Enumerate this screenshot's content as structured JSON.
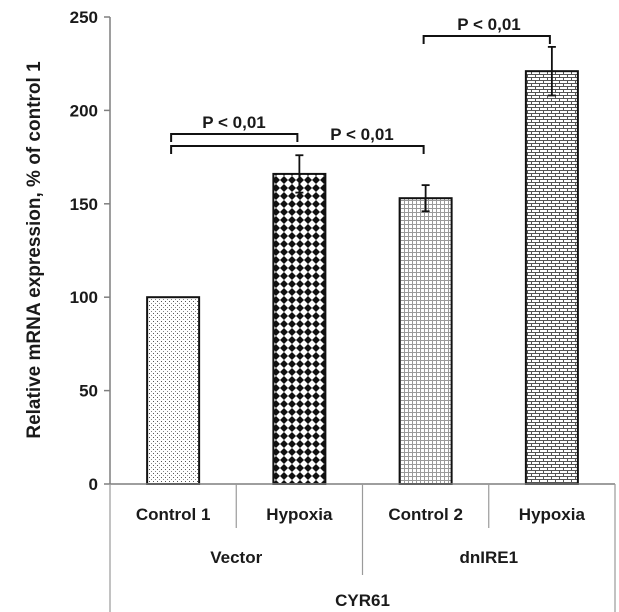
{
  "chart_data": {
    "type": "bar",
    "ylabel": "Relative mRNA expression, % of control 1",
    "ylim": [
      0,
      250
    ],
    "yticks": [
      0,
      50,
      100,
      150,
      200,
      250
    ],
    "grid": false,
    "categories": [
      "Control 1",
      "Hypoxia",
      "Control 2",
      "Hypoxia"
    ],
    "groups": [
      "Vector",
      "dnIRE1"
    ],
    "gene": "CYR61",
    "values": [
      100,
      166,
      153,
      221
    ],
    "errors": [
      0,
      10,
      7,
      13
    ],
    "patterns": [
      "fine-dots",
      "diamond-checker",
      "small-grid",
      "brick"
    ],
    "annotations": [
      {
        "label": "P < 0,01",
        "from": 0,
        "to": 1
      },
      {
        "label": "P < 0,01",
        "from": 0,
        "to": 2
      },
      {
        "label": "P < 0,01",
        "from": 2,
        "to": 3
      }
    ]
  }
}
